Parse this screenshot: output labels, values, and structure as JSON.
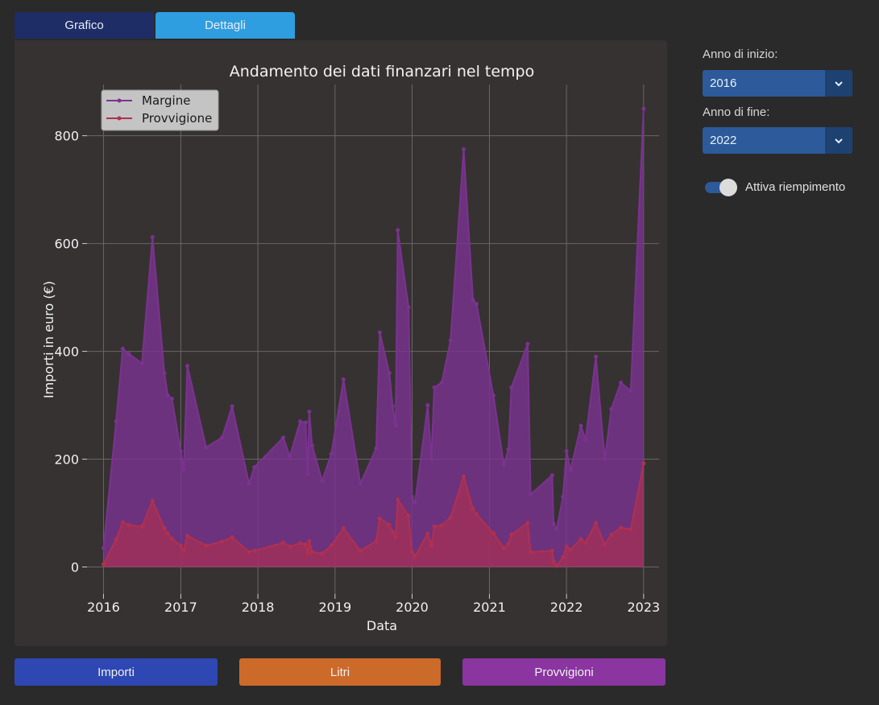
{
  "tabs": {
    "grafico": "Grafico",
    "dettagli": "Dettagli"
  },
  "controls": {
    "start_label": "Anno di inizio:",
    "start_value": "2016",
    "end_label": "Anno di fine:",
    "end_value": "2022",
    "fill_toggle_label": "Attiva riempimento",
    "fill_toggle_on": true
  },
  "bottom_buttons": {
    "importi": "Importi",
    "litri": "Litri",
    "provvigioni": "Provvigioni"
  },
  "colors": {
    "margine": "#7b3290",
    "provvigione": "#b03050",
    "importi_button": "#2e47b2",
    "litri_button": "#cc6a2a",
    "provvigioni_button": "#8a35a0"
  },
  "chart_data": {
    "type": "area",
    "title": "Andamento dei dati finanzari nel tempo",
    "xlabel": "Data",
    "ylabel": "Importi in euro (€)",
    "xlim": [
      "2015-10-15",
      "2023-03-15"
    ],
    "ylim": [
      -50,
      895
    ],
    "x_ticks": [
      "2016",
      "2017",
      "2018",
      "2019",
      "2020",
      "2021",
      "2022",
      "2023"
    ],
    "y_ticks": [
      0,
      200,
      400,
      600,
      800
    ],
    "grid": true,
    "legend_position": "top-left",
    "series": [
      {
        "name": "Margine",
        "points": [
          [
            "2016-01-01",
            35
          ],
          [
            "2016-03-01",
            270
          ],
          [
            "2016-04-01",
            405
          ],
          [
            "2016-05-01",
            395
          ],
          [
            "2016-07-01",
            378
          ],
          [
            "2016-08-20",
            612
          ],
          [
            "2016-10-15",
            360
          ],
          [
            "2016-11-01",
            318
          ],
          [
            "2016-11-20",
            312
          ],
          [
            "2017-01-01",
            215
          ],
          [
            "2017-01-15",
            180
          ],
          [
            "2017-02-01",
            373
          ],
          [
            "2017-05-01",
            222
          ],
          [
            "2017-07-15",
            240
          ],
          [
            "2017-09-01",
            298
          ],
          [
            "2017-11-20",
            155
          ],
          [
            "2017-12-15",
            185
          ],
          [
            "2018-05-01",
            240
          ],
          [
            "2018-06-01",
            205
          ],
          [
            "2018-07-20",
            270
          ],
          [
            "2018-08-15",
            268
          ],
          [
            "2018-08-25",
            172
          ],
          [
            "2018-09-01",
            288
          ],
          [
            "2018-09-15",
            225
          ],
          [
            "2018-11-01",
            160
          ],
          [
            "2018-12-15",
            210
          ],
          [
            "2019-02-10",
            348
          ],
          [
            "2019-05-01",
            155
          ],
          [
            "2019-07-15",
            220
          ],
          [
            "2019-08-01",
            435
          ],
          [
            "2019-09-15",
            360
          ],
          [
            "2019-10-01",
            298
          ],
          [
            "2019-10-15",
            262
          ],
          [
            "2019-10-25",
            625
          ],
          [
            "2019-12-15",
            482
          ],
          [
            "2020-01-01",
            130
          ],
          [
            "2020-01-15",
            120
          ],
          [
            "2020-03-15",
            300
          ],
          [
            "2020-04-01",
            200
          ],
          [
            "2020-04-15",
            333
          ],
          [
            "2020-05-20",
            342
          ],
          [
            "2020-07-01",
            420
          ],
          [
            "2020-09-01",
            775
          ],
          [
            "2020-10-15",
            495
          ],
          [
            "2020-11-01",
            488
          ],
          [
            "2021-01-20",
            318
          ],
          [
            "2021-03-10",
            190
          ],
          [
            "2021-04-01",
            218
          ],
          [
            "2021-04-15",
            333
          ],
          [
            "2021-07-01",
            414
          ],
          [
            "2021-07-15",
            135
          ],
          [
            "2021-10-25",
            170
          ],
          [
            "2021-11-01",
            80
          ],
          [
            "2021-11-15",
            70
          ],
          [
            "2021-12-15",
            130
          ],
          [
            "2022-01-01",
            215
          ],
          [
            "2022-01-20",
            180
          ],
          [
            "2022-03-10",
            262
          ],
          [
            "2022-04-01",
            236
          ],
          [
            "2022-05-20",
            390
          ],
          [
            "2022-07-01",
            200
          ],
          [
            "2022-08-01",
            293
          ],
          [
            "2022-09-15",
            342
          ],
          [
            "2022-11-01",
            327
          ],
          [
            "2023-01-01",
            850
          ]
        ]
      },
      {
        "name": "Provvigione",
        "points": [
          [
            "2016-01-01",
            5
          ],
          [
            "2016-03-01",
            52
          ],
          [
            "2016-04-01",
            83
          ],
          [
            "2016-05-01",
            78
          ],
          [
            "2016-07-01",
            75
          ],
          [
            "2016-08-20",
            123
          ],
          [
            "2016-10-15",
            72
          ],
          [
            "2016-11-01",
            62
          ],
          [
            "2016-11-20",
            52
          ],
          [
            "2017-01-01",
            40
          ],
          [
            "2017-01-15",
            30
          ],
          [
            "2017-02-01",
            58
          ],
          [
            "2017-05-01",
            40
          ],
          [
            "2017-07-15",
            47
          ],
          [
            "2017-09-01",
            55
          ],
          [
            "2017-11-20",
            28
          ],
          [
            "2017-12-15",
            30
          ],
          [
            "2018-05-01",
            45
          ],
          [
            "2018-06-01",
            38
          ],
          [
            "2018-07-20",
            44
          ],
          [
            "2018-08-15",
            42
          ],
          [
            "2018-08-25",
            25
          ],
          [
            "2018-09-01",
            48
          ],
          [
            "2018-09-15",
            28
          ],
          [
            "2018-11-01",
            25
          ],
          [
            "2018-12-15",
            40
          ],
          [
            "2019-02-10",
            72
          ],
          [
            "2019-05-01",
            30
          ],
          [
            "2019-07-15",
            48
          ],
          [
            "2019-08-01",
            90
          ],
          [
            "2019-09-15",
            78
          ],
          [
            "2019-10-01",
            65
          ],
          [
            "2019-10-15",
            55
          ],
          [
            "2019-10-25",
            125
          ],
          [
            "2019-12-15",
            95
          ],
          [
            "2020-01-01",
            28
          ],
          [
            "2020-01-15",
            20
          ],
          [
            "2020-03-15",
            62
          ],
          [
            "2020-04-01",
            40
          ],
          [
            "2020-04-15",
            75
          ],
          [
            "2020-05-20",
            77
          ],
          [
            "2020-07-01",
            92
          ],
          [
            "2020-09-01",
            168
          ],
          [
            "2020-10-15",
            108
          ],
          [
            "2020-11-01",
            98
          ],
          [
            "2021-01-20",
            63
          ],
          [
            "2021-03-10",
            35
          ],
          [
            "2021-04-01",
            43
          ],
          [
            "2021-04-15",
            60
          ],
          [
            "2021-07-01",
            82
          ],
          [
            "2021-07-15",
            28
          ],
          [
            "2021-10-25",
            30
          ],
          [
            "2021-11-01",
            10
          ],
          [
            "2021-11-15",
            2
          ],
          [
            "2021-12-15",
            18
          ],
          [
            "2022-01-01",
            38
          ],
          [
            "2022-01-20",
            32
          ],
          [
            "2022-03-10",
            52
          ],
          [
            "2022-04-01",
            45
          ],
          [
            "2022-05-20",
            82
          ],
          [
            "2022-07-01",
            42
          ],
          [
            "2022-08-01",
            60
          ],
          [
            "2022-09-15",
            73
          ],
          [
            "2022-11-01",
            70
          ],
          [
            "2023-01-01",
            192
          ]
        ]
      }
    ]
  }
}
